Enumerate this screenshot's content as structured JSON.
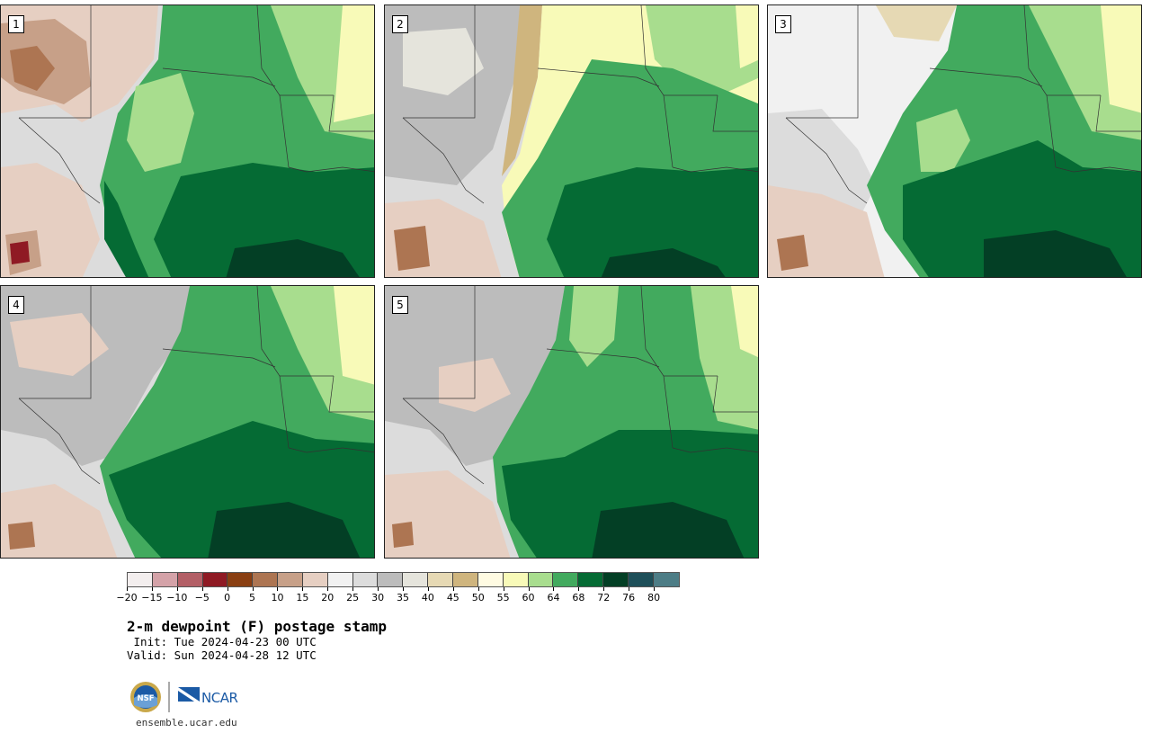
{
  "panels": [
    {
      "label": "1"
    },
    {
      "label": "2"
    },
    {
      "label": "3"
    },
    {
      "label": "4"
    },
    {
      "label": "5"
    }
  ],
  "colorbar": {
    "colors": [
      "#f3eeee",
      "#d4a2a8",
      "#b35f66",
      "#8f1a24",
      "#8a3f12",
      "#ad7552",
      "#c7a088",
      "#e6cfc2",
      "#f1f1f1",
      "#dcdcdc",
      "#bcbcbc",
      "#e5e4dc",
      "#e6d9b4",
      "#cfb57e",
      "#fffbe2",
      "#f8fab8",
      "#a8dd8e",
      "#42aa5e",
      "#056b34",
      "#033f25",
      "#1e4f59",
      "#4d7d86"
    ],
    "tick_labels": [
      "−20",
      "−15",
      "−10",
      "−5",
      "0",
      "5",
      "10",
      "15",
      "20",
      "25",
      "30",
      "35",
      "40",
      "45",
      "50",
      "55",
      "60",
      "64",
      "68",
      "72",
      "76",
      "80"
    ]
  },
  "title": "2-m dewpoint (F) postage stamp",
  "init": " Init: Tue 2024-04-23 00 UTC",
  "valid": "Valid: Sun 2024-04-28 12 UTC",
  "logos": {
    "nsf": "NSF",
    "ncar": "NCAR"
  },
  "url": "ensemble.ucar.edu"
}
